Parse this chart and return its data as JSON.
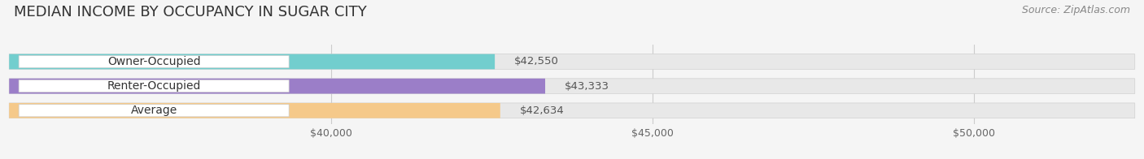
{
  "title": "MEDIAN INCOME BY OCCUPANCY IN SUGAR CITY",
  "source": "Source: ZipAtlas.com",
  "categories": [
    "Owner-Occupied",
    "Renter-Occupied",
    "Average"
  ],
  "values": [
    42550,
    43333,
    42634
  ],
  "bar_colors": [
    "#72cece",
    "#9b7ec8",
    "#f5c98a"
  ],
  "bar_bg_color": "#e8e8e8",
  "value_labels": [
    "$42,550",
    "$43,333",
    "$42,634"
  ],
  "xlim_left": 35000,
  "xlim_right": 52500,
  "xticks": [
    40000,
    45000,
    50000
  ],
  "xtick_labels": [
    "$40,000",
    "$45,000",
    "$50,000"
  ],
  "background_color": "#f5f5f5",
  "title_fontsize": 13,
  "source_fontsize": 9,
  "label_fontsize": 10,
  "value_fontsize": 9.5,
  "tick_fontsize": 9
}
